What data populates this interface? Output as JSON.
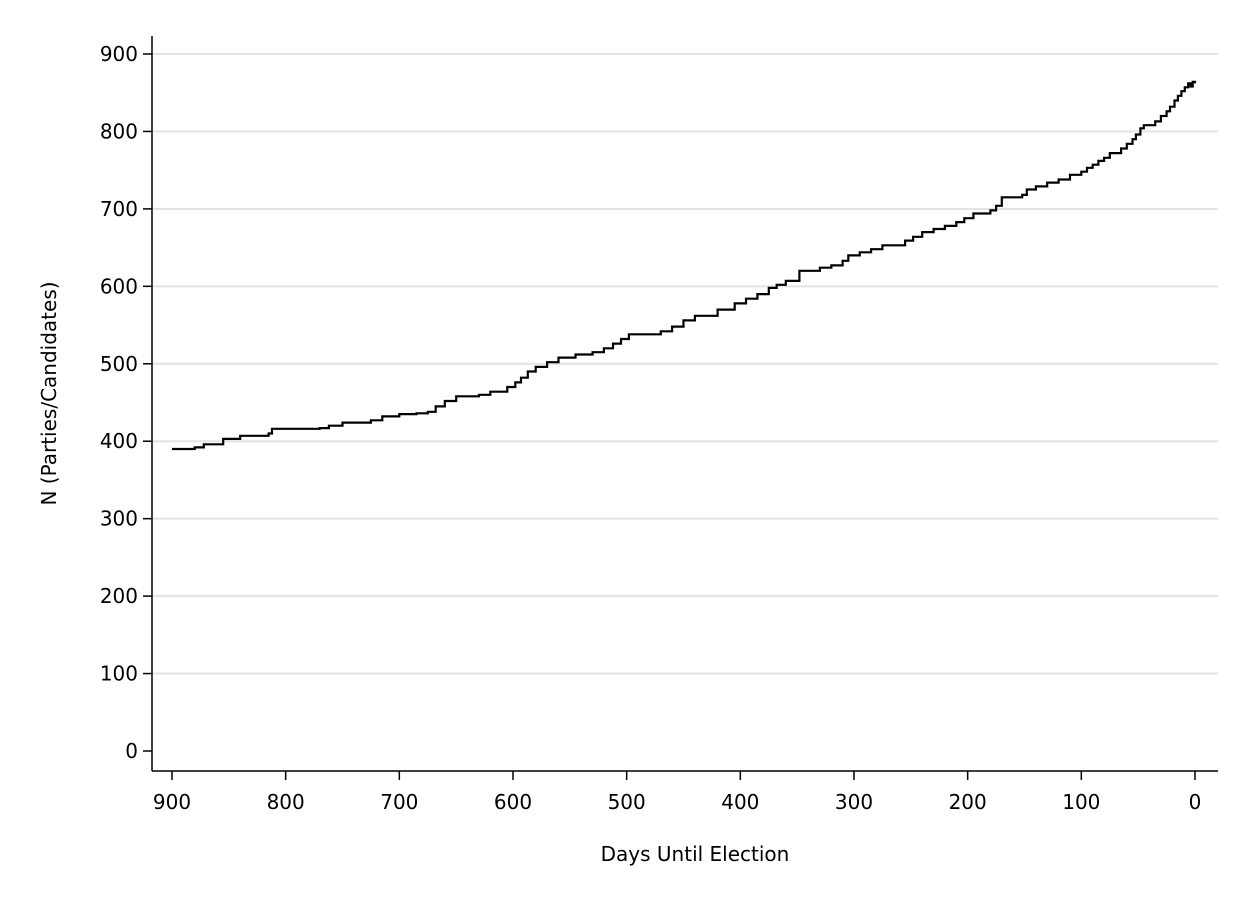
{
  "chart_data": {
    "type": "line",
    "title": "",
    "xlabel": "Days Until Election",
    "ylabel": "N (Parties/Candidates)",
    "xlim": [
      900,
      0
    ],
    "x_reversed": true,
    "ylim": [
      0,
      900
    ],
    "x_ticks": [
      900,
      800,
      700,
      600,
      500,
      400,
      300,
      200,
      100,
      0
    ],
    "y_ticks": [
      0,
      100,
      200,
      300,
      400,
      500,
      600,
      700,
      800,
      900
    ],
    "x_tick_labels": [
      "900",
      "800",
      "700",
      "600",
      "500",
      "400",
      "300",
      "200",
      "100",
      "0"
    ],
    "y_tick_labels": [
      "0",
      "100",
      "200",
      "300",
      "400",
      "500",
      "600",
      "700",
      "800",
      "900"
    ],
    "grid": "horizontal",
    "series": [
      {
        "color": "#000000",
        "step": true,
        "points": [
          [
            900,
            390
          ],
          [
            880,
            392
          ],
          [
            872,
            396
          ],
          [
            855,
            403
          ],
          [
            840,
            407
          ],
          [
            815,
            410
          ],
          [
            812,
            416
          ],
          [
            770,
            417
          ],
          [
            762,
            420
          ],
          [
            750,
            424
          ],
          [
            725,
            427
          ],
          [
            715,
            432
          ],
          [
            700,
            435
          ],
          [
            685,
            436
          ],
          [
            675,
            438
          ],
          [
            668,
            445
          ],
          [
            660,
            452
          ],
          [
            650,
            458
          ],
          [
            630,
            460
          ],
          [
            620,
            464
          ],
          [
            605,
            470
          ],
          [
            598,
            476
          ],
          [
            593,
            482
          ],
          [
            587,
            490
          ],
          [
            580,
            496
          ],
          [
            570,
            502
          ],
          [
            560,
            508
          ],
          [
            545,
            512
          ],
          [
            530,
            515
          ],
          [
            520,
            520
          ],
          [
            512,
            526
          ],
          [
            505,
            532
          ],
          [
            498,
            538
          ],
          [
            470,
            542
          ],
          [
            460,
            548
          ],
          [
            450,
            556
          ],
          [
            440,
            562
          ],
          [
            420,
            570
          ],
          [
            405,
            578
          ],
          [
            395,
            584
          ],
          [
            385,
            590
          ],
          [
            375,
            598
          ],
          [
            368,
            602
          ],
          [
            360,
            607
          ],
          [
            348,
            620
          ],
          [
            330,
            624
          ],
          [
            320,
            627
          ],
          [
            310,
            633
          ],
          [
            305,
            640
          ],
          [
            295,
            644
          ],
          [
            285,
            648
          ],
          [
            275,
            653
          ],
          [
            255,
            659
          ],
          [
            248,
            664
          ],
          [
            240,
            670
          ],
          [
            230,
            674
          ],
          [
            220,
            678
          ],
          [
            210,
            683
          ],
          [
            203,
            688
          ],
          [
            195,
            694
          ],
          [
            180,
            698
          ],
          [
            175,
            704
          ],
          [
            170,
            715
          ],
          [
            152,
            718
          ],
          [
            148,
            725
          ],
          [
            140,
            729
          ],
          [
            130,
            734
          ],
          [
            120,
            738
          ],
          [
            110,
            744
          ],
          [
            100,
            748
          ],
          [
            95,
            753
          ],
          [
            90,
            757
          ],
          [
            85,
            762
          ],
          [
            80,
            766
          ],
          [
            75,
            772
          ],
          [
            65,
            778
          ],
          [
            60,
            784
          ],
          [
            55,
            790
          ],
          [
            52,
            796
          ],
          [
            48,
            804
          ],
          [
            45,
            808
          ],
          [
            35,
            813
          ],
          [
            30,
            820
          ],
          [
            25,
            826
          ],
          [
            22,
            832
          ],
          [
            18,
            840
          ],
          [
            15,
            846
          ],
          [
            12,
            852
          ],
          [
            9,
            857
          ],
          [
            6,
            862
          ],
          [
            4,
            858
          ],
          [
            2,
            864
          ],
          [
            0,
            862
          ]
        ]
      }
    ]
  }
}
